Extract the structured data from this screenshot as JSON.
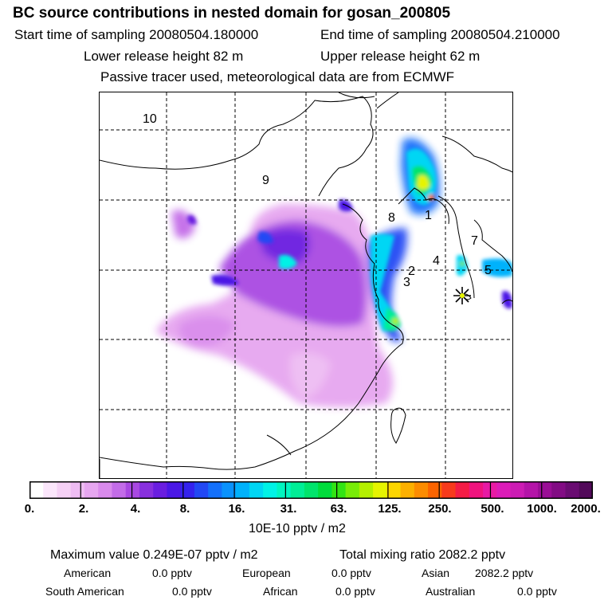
{
  "header": {
    "title": "BC  source contributions in nested domain for gosan_200805",
    "start_label": "Start time of sampling 20080504.180000",
    "end_label": "End time of sampling 20080504.210000",
    "lower_label": "Lower release height   82 m",
    "upper_label": "Upper release height   62 m",
    "tracer_label": "Passive tracer used, meteorological data are from ECMWF"
  },
  "chart_data": {
    "type": "heatmap",
    "title": "BC  source contributions in nested domain for gosan_200805",
    "colorbar_unit": "10E-10 pptv / m2",
    "colorbar_ticks": [
      "0.",
      "2.",
      "4.",
      "8.",
      "16.",
      "31.",
      "63.",
      "125.",
      "250.",
      "500.",
      "1000.",
      "2000."
    ],
    "colorbar_colors": [
      "#ffffff",
      "#fbe6fb",
      "#f5d0f5",
      "#eebcf3",
      "#e6a6f0",
      "#d98aec",
      "#c36ce8",
      "#a948e2",
      "#8830de",
      "#6a1ee0",
      "#4b18e6",
      "#3422ee",
      "#2248f4",
      "#1470fa",
      "#0a92fc",
      "#00b2fc",
      "#00d6f4",
      "#00f2e6",
      "#00f5c0",
      "#00ee96",
      "#00e46c",
      "#00dc3c",
      "#32e414",
      "#78ec08",
      "#b4f000",
      "#e6f400",
      "#fcd600",
      "#fcb000",
      "#fc8c00",
      "#fc6400",
      "#f83a1c",
      "#f41c46",
      "#f0147e",
      "#e81aa4",
      "#dc1cb8",
      "#cc1cb4",
      "#b414a8",
      "#9a0e96",
      "#820c84",
      "#6a0c72",
      "#520a5a"
    ],
    "region_labels": [
      "10",
      "9",
      "8",
      "1",
      "7",
      "2",
      "3",
      "4",
      "5"
    ],
    "receptor": "Gosan",
    "maximum_value": "0.249E-07",
    "total_mixing_ratio_pptv": 2082.2,
    "contributions_pptv": {
      "American": 0.0,
      "European": 0.0,
      "Asian": 2082.2,
      "South American": 0.0,
      "African": 0.0,
      "Australian": 0.0
    }
  },
  "footer": {
    "max_text": "Maximum value  0.249E-07 pptv / m2",
    "total_text": "Total mixing ratio     2082.2 pptv",
    "american_label": "American",
    "american_value": "0.0 pptv",
    "european_label": "European",
    "european_value": "0.0 pptv",
    "asian_label": "Asian",
    "asian_value": "2082.2 pptv",
    "south_american_label": "South American",
    "south_american_value": "0.0 pptv",
    "african_label": "African",
    "african_value": "0.0 pptv",
    "australian_label": "Australian",
    "australian_value": "0.0 pptv"
  }
}
